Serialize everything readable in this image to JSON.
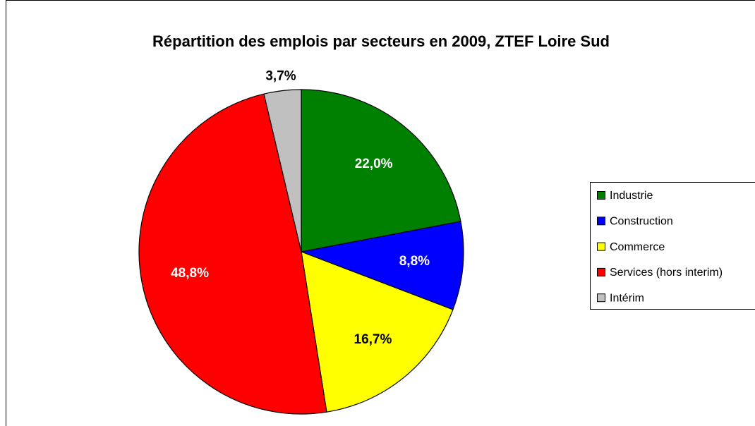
{
  "chart_data": {
    "type": "pie",
    "title": "Répartition des emplois par secteurs en 2009, ZTEF Loire Sud",
    "categories": [
      "Industrie",
      "Construction",
      "Commerce",
      "Services (hors interim)",
      "Intérim"
    ],
    "values": [
      22.0,
      8.8,
      16.7,
      48.8,
      3.7
    ],
    "value_labels": [
      "22,0%",
      "8,8%",
      "16,7%",
      "48,8%",
      "3,7%"
    ],
    "colors": [
      "#008000",
      "#0000ff",
      "#ffff00",
      "#ff0000",
      "#c0c0c0"
    ],
    "legend": "right"
  }
}
